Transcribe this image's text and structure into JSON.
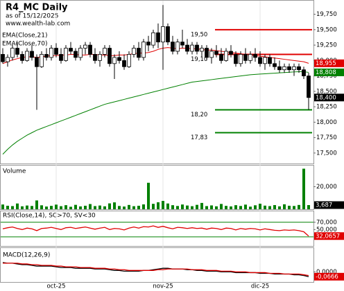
{
  "chart_data": [
    {
      "type": "candlestick",
      "title": "R4_MC Daily",
      "subtitle": "as of 15/12/2025",
      "source": "www.wealth-lab.com",
      "categories": [
        null,
        null,
        null,
        null,
        null,
        null,
        null,
        null,
        null,
        null,
        null,
        "oct-25",
        null,
        null,
        null,
        null,
        null,
        null,
        null,
        null,
        null,
        null,
        null,
        null,
        null,
        null,
        null,
        null,
        null,
        null,
        null,
        null,
        null,
        "nov-25",
        null,
        null,
        null,
        null,
        null,
        null,
        null,
        null,
        null,
        null,
        null,
        null,
        null,
        null,
        null,
        null,
        null,
        null,
        null,
        "dic-25",
        null,
        null,
        null,
        null,
        null,
        null,
        null,
        null,
        null,
        null
      ],
      "ohlc": [
        [
          19100,
          19200,
          18950,
          18980
        ],
        [
          18980,
          19100,
          18900,
          19050
        ],
        [
          19050,
          19250,
          19000,
          19200
        ],
        [
          19200,
          19300,
          19050,
          19100
        ],
        [
          19100,
          19150,
          18950,
          19000
        ],
        [
          19000,
          19200,
          18980,
          19150
        ],
        [
          19150,
          19250,
          19000,
          19050
        ],
        [
          19050,
          19100,
          18200,
          18900
        ],
        [
          18900,
          19150,
          18880,
          19100
        ],
        [
          19100,
          19200,
          19000,
          19050
        ],
        [
          19050,
          19250,
          19000,
          19200
        ],
        [
          19200,
          19280,
          19050,
          19100
        ],
        [
          19100,
          19200,
          18950,
          19000
        ],
        [
          19000,
          19250,
          18980,
          19200
        ],
        [
          19200,
          19300,
          19100,
          19150
        ],
        [
          19150,
          19200,
          19000,
          19050
        ],
        [
          19050,
          19250,
          19000,
          19200
        ],
        [
          19200,
          19300,
          19100,
          19250
        ],
        [
          19250,
          19300,
          19050,
          19100
        ],
        [
          19100,
          19200,
          18950,
          19000
        ],
        [
          19000,
          19150,
          18900,
          19100
        ],
        [
          19100,
          19250,
          19050,
          19200
        ],
        [
          19200,
          19250,
          18900,
          18950
        ],
        [
          18950,
          19100,
          18700,
          19050
        ],
        [
          19050,
          19150,
          18950,
          19000
        ],
        [
          19000,
          19100,
          18850,
          18900
        ],
        [
          18900,
          19150,
          18880,
          19100
        ],
        [
          19100,
          19250,
          19050,
          19200
        ],
        [
          19200,
          19300,
          19000,
          19050
        ],
        [
          19050,
          19350,
          19000,
          19300
        ],
        [
          19300,
          19400,
          19150,
          19250
        ],
        [
          19250,
          19500,
          19200,
          19450
        ],
        [
          19450,
          19600,
          19200,
          19300
        ],
        [
          19300,
          19900,
          18850,
          19550
        ],
        [
          19550,
          19600,
          19250,
          19300
        ],
        [
          19300,
          19400,
          19100,
          19150
        ],
        [
          19150,
          19350,
          19100,
          19300
        ],
        [
          19300,
          19500,
          19200,
          19250
        ],
        [
          19250,
          19350,
          19100,
          19150
        ],
        [
          19150,
          19300,
          19100,
          19250
        ],
        [
          19250,
          19300,
          19100,
          19150
        ],
        [
          19150,
          19250,
          19050,
          19200
        ],
        [
          19200,
          19250,
          19000,
          19050
        ],
        [
          19050,
          19200,
          18950,
          19150
        ],
        [
          19150,
          19250,
          19050,
          19100
        ],
        [
          19100,
          19200,
          18950,
          19000
        ],
        [
          19000,
          19200,
          18980,
          19150
        ],
        [
          19150,
          19250,
          19050,
          19100
        ],
        [
          19100,
          19150,
          18900,
          18950
        ],
        [
          18950,
          19150,
          18900,
          19100
        ],
        [
          19100,
          19200,
          18950,
          19000
        ],
        [
          19000,
          19150,
          18950,
          19100
        ],
        [
          19100,
          19200,
          18980,
          19050
        ],
        [
          19050,
          19150,
          18900,
          18950
        ],
        [
          18950,
          19100,
          18850,
          19050
        ],
        [
          19050,
          19100,
          18900,
          18950
        ],
        [
          18950,
          19050,
          18850,
          18900
        ],
        [
          18900,
          19000,
          18800,
          18850
        ],
        [
          18850,
          18950,
          18800,
          18900
        ],
        [
          18900,
          18950,
          18800,
          18850
        ],
        [
          18850,
          18950,
          18750,
          18900
        ],
        [
          18900,
          18950,
          18800,
          18850
        ],
        [
          18850,
          18900,
          18700,
          18750
        ],
        [
          18750,
          18800,
          18200,
          18400
        ]
      ],
      "up_color": "#ffffff",
      "down_color": "#000000",
      "close_label": "18,400",
      "series": [
        {
          "name": "EMA(Close,21)",
          "color": "#e00000",
          "last_label": "18,955",
          "values": [
            18950,
            18980,
            19010,
            19030,
            19050,
            19060,
            19060,
            19050,
            19060,
            19070,
            19080,
            19080,
            19090,
            19090,
            19100,
            19100,
            19090,
            19090,
            19100,
            19100,
            19090,
            19090,
            19080,
            19080,
            19090,
            19090,
            19100,
            19110,
            19120,
            19120,
            19130,
            19150,
            19180,
            19200,
            19210,
            19200,
            19190,
            19200,
            19200,
            19190,
            19190,
            19180,
            19170,
            19170,
            19160,
            19150,
            19140,
            19130,
            19120,
            19110,
            19100,
            19090,
            19080,
            19070,
            19060,
            19050,
            19040,
            19030,
            19020,
            19010,
            19000,
            18990,
            18980,
            18955
          ]
        },
        {
          "name": "EMA(Close,70)",
          "color": "#008000",
          "last_label": "18,808",
          "values": [
            17480,
            17560,
            17630,
            17690,
            17740,
            17790,
            17830,
            17870,
            17900,
            17930,
            17960,
            17990,
            18020,
            18050,
            18080,
            18110,
            18140,
            18170,
            18200,
            18230,
            18260,
            18290,
            18310,
            18330,
            18350,
            18370,
            18390,
            18410,
            18430,
            18450,
            18470,
            18490,
            18510,
            18530,
            18550,
            18570,
            18590,
            18610,
            18630,
            18650,
            18660,
            18670,
            18680,
            18690,
            18700,
            18710,
            18720,
            18730,
            18740,
            18750,
            18760,
            18770,
            18775,
            18780,
            18785,
            18790,
            18795,
            18800,
            18805,
            18810,
            18815,
            18818,
            18818,
            18808
          ]
        }
      ],
      "levels": [
        {
          "value": 19500,
          "label": "19,50",
          "color": "#e00000"
        },
        {
          "value": 19100,
          "label": "19,10",
          "color": "#e00000"
        },
        {
          "value": 18200,
          "label": "18,20",
          "color": "#008000"
        },
        {
          "value": 17830,
          "label": "17,83",
          "color": "#008000"
        }
      ],
      "ylim": [
        17330,
        19970
      ],
      "yticks": [
        {
          "value": 17500,
          "label": "17,500"
        },
        {
          "value": 17750,
          "label": "17,750"
        },
        {
          "value": 18000,
          "label": "18,000"
        },
        {
          "value": 18250,
          "label": "18,250"
        },
        {
          "value": 18500,
          "label": "18,500"
        },
        {
          "value": 18750,
          "label": "18,750"
        },
        {
          "value": 19000,
          "label": "19,000"
        },
        {
          "value": 19250,
          "label": "19,250"
        },
        {
          "value": 19500,
          "label": "19,500"
        },
        {
          "value": 19750,
          "label": "19,750"
        }
      ]
    },
    {
      "type": "bar",
      "title": "Volume",
      "color": "#008000",
      "last_label": "3,687",
      "values": [
        4200,
        3100,
        2800,
        5100,
        2600,
        3300,
        2900,
        7800,
        3500,
        2400,
        3000,
        4100,
        2700,
        3600,
        2200,
        3900,
        2500,
        3100,
        4600,
        2800,
        3300,
        2600,
        5200,
        6100,
        2900,
        2400,
        3800,
        2700,
        3100,
        4300,
        23500,
        4800,
        6200,
        7400,
        5100,
        3600,
        2900,
        4200,
        3300,
        2700,
        3900,
        5600,
        2800,
        3400,
        2600,
        4700,
        3000,
        2500,
        3600,
        2900,
        4100,
        2300,
        3500,
        4900,
        3200,
        2800,
        3700,
        2600,
        4400,
        3100,
        2900,
        3800,
        36000,
        3687
      ],
      "ylim": [
        0,
        38750
      ],
      "yticks": [
        {
          "value": 20000,
          "label": "20,000"
        }
      ]
    },
    {
      "type": "line",
      "title": "RSI(Close,14), SC>70, SV<30",
      "series": [
        {
          "color": "#e00000",
          "last_label": "32,0657",
          "values": [
            52,
            55,
            57,
            53,
            50,
            54,
            52,
            47,
            53,
            54,
            56,
            53,
            50,
            55,
            56,
            53,
            55,
            57,
            54,
            51,
            54,
            56,
            50,
            53,
            52,
            49,
            54,
            57,
            54,
            58,
            57,
            60,
            56,
            59,
            55,
            52,
            56,
            55,
            53,
            55,
            53,
            54,
            51,
            54,
            53,
            50,
            54,
            53,
            49,
            53,
            51,
            53,
            52,
            49,
            52,
            50,
            48,
            47,
            49,
            48,
            49,
            47,
            44,
            32.0657
          ]
        }
      ],
      "reference_lines": [
        70,
        30
      ],
      "reference_color": "#008000",
      "ylim": [
        5,
        100
      ],
      "yticks": [
        {
          "value": 70,
          "label": "70,000"
        },
        {
          "value": 50,
          "label": "50,000"
        }
      ]
    },
    {
      "type": "line",
      "title": "MACD(12,26,9)",
      "series": [
        {
          "color": "#000000",
          "last_label": "-0,0666",
          "label_color": "#e00000",
          "values": [
            0.13,
            0.12,
            0.12,
            0.11,
            0.1,
            0.1,
            0.09,
            0.08,
            0.08,
            0.08,
            0.08,
            0.07,
            0.06,
            0.06,
            0.06,
            0.05,
            0.05,
            0.05,
            0.05,
            0.04,
            0.04,
            0.04,
            0.03,
            0.02,
            0.02,
            0.01,
            0.01,
            0.01,
            0.01,
            0.02,
            0.02,
            0.03,
            0.04,
            0.05,
            0.05,
            0.04,
            0.04,
            0.04,
            0.03,
            0.03,
            0.02,
            0.02,
            0.01,
            0.01,
            0.01,
            0.0,
            0.0,
            0.0,
            -0.01,
            -0.01,
            -0.01,
            -0.01,
            -0.01,
            -0.02,
            -0.02,
            -0.02,
            -0.03,
            -0.03,
            -0.03,
            -0.03,
            -0.04,
            -0.04,
            -0.05,
            -0.0666
          ]
        },
        {
          "color": "#e00000",
          "values": [
            0.12,
            0.12,
            0.12,
            0.12,
            0.11,
            0.11,
            0.1,
            0.1,
            0.09,
            0.09,
            0.09,
            0.08,
            0.08,
            0.07,
            0.07,
            0.07,
            0.06,
            0.06,
            0.06,
            0.05,
            0.05,
            0.05,
            0.04,
            0.04,
            0.03,
            0.03,
            0.02,
            0.02,
            0.02,
            0.02,
            0.02,
            0.02,
            0.03,
            0.03,
            0.04,
            0.04,
            0.04,
            0.04,
            0.04,
            0.03,
            0.03,
            0.03,
            0.02,
            0.02,
            0.02,
            0.01,
            0.01,
            0.01,
            0.0,
            0.0,
            0.0,
            -0.01,
            -0.01,
            -0.01,
            -0.01,
            -0.02,
            -0.02,
            -0.02,
            -0.03,
            -0.03,
            -0.03,
            -0.03,
            -0.04,
            -0.05
          ]
        }
      ],
      "ylim": [
        -0.14,
        0.33
      ],
      "yticks": [
        {
          "value": 0,
          "label": "0,0000"
        }
      ]
    }
  ]
}
